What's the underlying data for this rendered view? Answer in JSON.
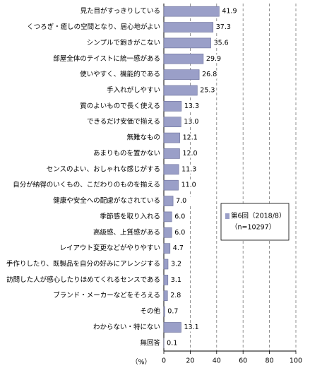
{
  "chart_data": {
    "type": "bar",
    "orientation": "horizontal",
    "categories": [
      "見た目がすっきりしている",
      "くつろぎ・癒しの空間となり、居心地がよい",
      "シンプルで飽きがこない",
      "部屋全体のテイストに統一感がある",
      "使いやすく、機能的である",
      "手入れがしやすい",
      "質のよいもので長く使える",
      "できるだけ安価で揃える",
      "無難なもの",
      "あまりものを置かない",
      "センスのよい、おしゃれな感じがする",
      "自分が納得のいくもの、こだわりのものを揃える",
      "健康や安全への配慮がなされている",
      "季節感を取り入れる",
      "高級感、上質感がある",
      "レイアウト変更などがやりやすい",
      "手作りしたり、既製品を自分の好みにアレンジする",
      "訪問した人が感心したりほめてくれるセンスである",
      "ブランド・メーカーなどをそろえる",
      "その他",
      "わからない・特にない",
      "無回答"
    ],
    "series": [
      {
        "name": "第6回（2018/8）",
        "color": "#9a9fc8",
        "values": [
          41.9,
          37.3,
          35.6,
          29.9,
          26.8,
          25.3,
          13.3,
          13.0,
          12.1,
          12.0,
          11.3,
          11.0,
          7.0,
          6.0,
          6.0,
          4.7,
          3.2,
          3.1,
          2.8,
          0.7,
          13.1,
          0.1
        ],
        "value_labels": [
          "41.9",
          "37.3",
          "35.6",
          "29.9",
          "26.8",
          "25.3",
          "13.3",
          "13.0",
          "12.1",
          "12.0",
          "11.3",
          "11.0",
          "7.0",
          "6.0",
          "6.0",
          "4.7",
          "3.2",
          "3.1",
          "2.8",
          "0.7",
          "13.1",
          "0.1"
        ]
      }
    ],
    "legend_note": "（n=10297）",
    "x_label": "（%）",
    "xlim": [
      0,
      100
    ],
    "xticks": [
      0,
      20,
      40,
      60,
      80,
      100
    ],
    "grid": true
  }
}
